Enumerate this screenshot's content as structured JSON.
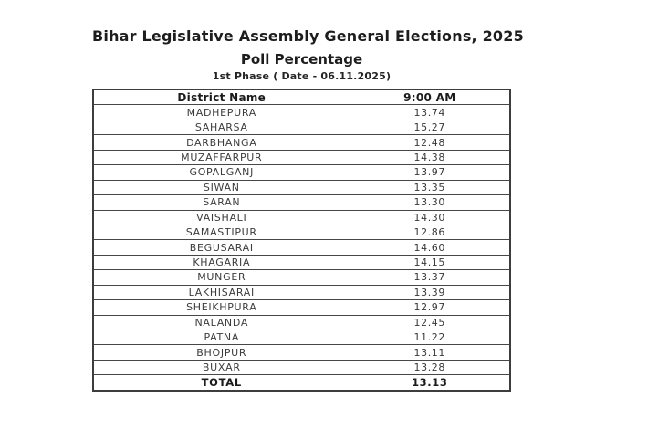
{
  "header": {
    "title": "Bihar Legislative Assembly General Elections, 2025",
    "subtitle": "Poll Percentage",
    "phase_line": "1st Phase ( Date - 06.11.2025)"
  },
  "table": {
    "columns": [
      "District Name",
      "9:00 AM"
    ],
    "rows": [
      {
        "district": "MADHEPURA",
        "value": "13.74"
      },
      {
        "district": "SAHARSA",
        "value": "15.27"
      },
      {
        "district": "DARBHANGA",
        "value": "12.48"
      },
      {
        "district": "MUZAFFARPUR",
        "value": "14.38"
      },
      {
        "district": "GOPALGANJ",
        "value": "13.97"
      },
      {
        "district": "SIWAN",
        "value": "13.35"
      },
      {
        "district": "SARAN",
        "value": "13.30"
      },
      {
        "district": "VAISHALI",
        "value": "14.30"
      },
      {
        "district": "SAMASTIPUR",
        "value": "12.86"
      },
      {
        "district": "BEGUSARAI",
        "value": "14.60"
      },
      {
        "district": "KHAGARIA",
        "value": "14.15"
      },
      {
        "district": "MUNGER",
        "value": "13.37"
      },
      {
        "district": "LAKHISARAI",
        "value": "13.39"
      },
      {
        "district": "SHEIKHPURA",
        "value": "12.97"
      },
      {
        "district": "NALANDA",
        "value": "12.45"
      },
      {
        "district": "PATNA",
        "value": "11.22"
      },
      {
        "district": "BHOJPUR",
        "value": "13.11"
      },
      {
        "district": "BUXAR",
        "value": "13.28"
      }
    ],
    "total": {
      "label": "TOTAL",
      "value": "13.13"
    }
  },
  "colors": {
    "page_background": "#ffffff",
    "text": "#1d1d1d",
    "table_border": "#474747"
  }
}
